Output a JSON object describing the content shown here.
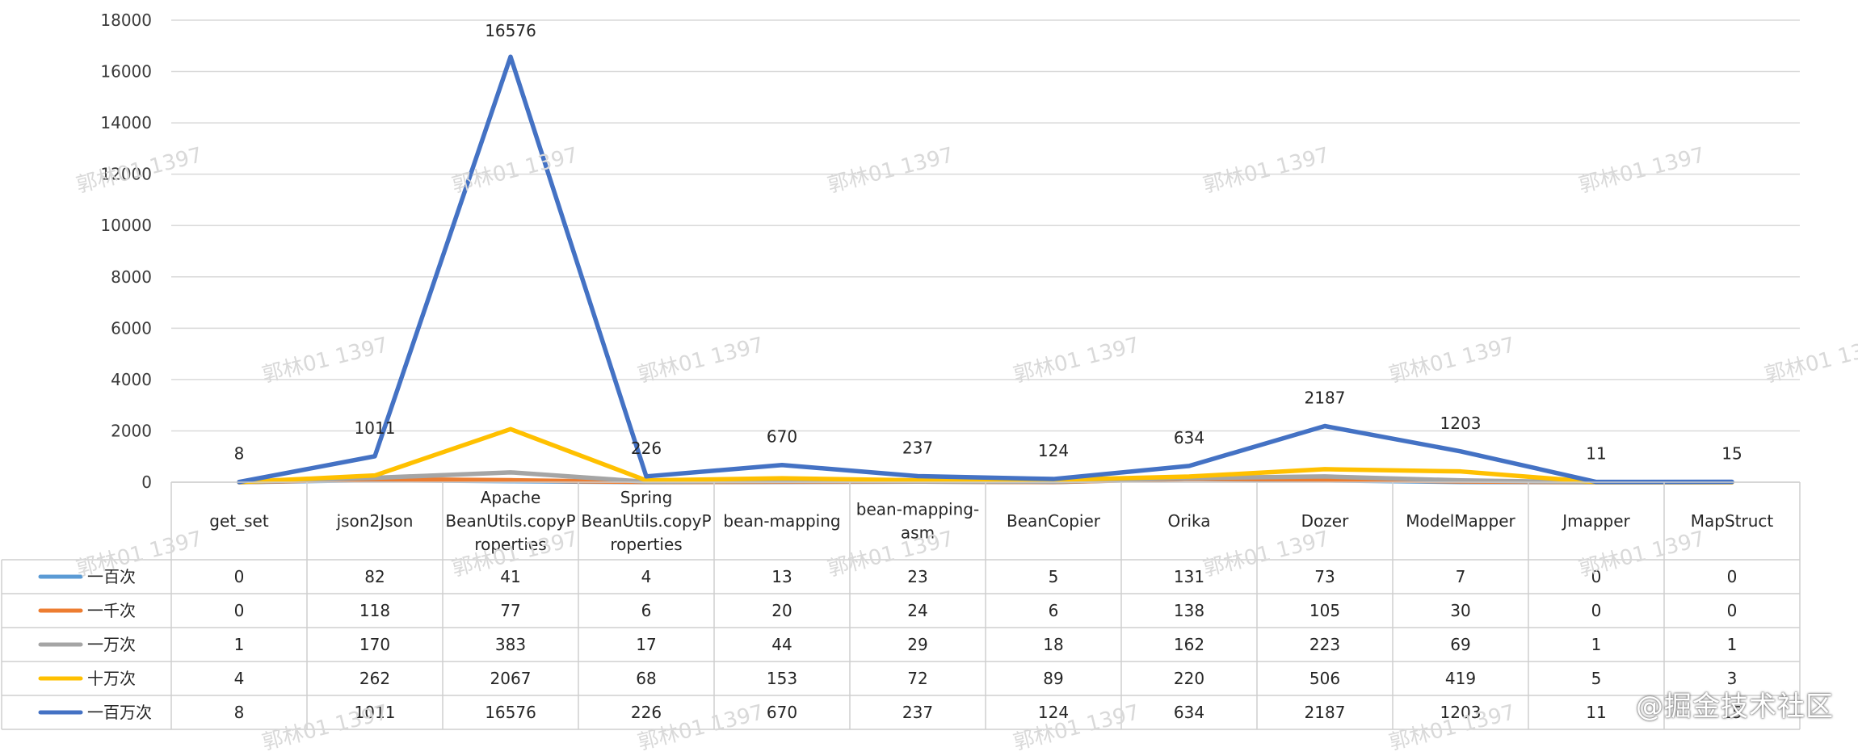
{
  "chart_data": {
    "type": "line",
    "ylim": [
      0,
      18000
    ],
    "yticks": [
      0,
      2000,
      4000,
      6000,
      8000,
      10000,
      12000,
      14000,
      16000,
      18000
    ],
    "grid": true,
    "legend": "data table (left column)",
    "categories": [
      [
        "get_set"
      ],
      [
        "json2Json"
      ],
      [
        "Apache",
        "BeanUtils.copyP",
        "roperties"
      ],
      [
        "Spring",
        "BeanUtils.copyP",
        "roperties"
      ],
      [
        "bean-mapping"
      ],
      [
        "bean-mapping-",
        "asm"
      ],
      [
        "BeanCopier"
      ],
      [
        "Orika"
      ],
      [
        "Dozer"
      ],
      [
        "ModelMapper"
      ],
      [
        "Jmapper"
      ],
      [
        "MapStruct"
      ]
    ],
    "series": [
      {
        "name": "一百次",
        "color": "#5b9bd5",
        "values": [
          0,
          82,
          41,
          4,
          13,
          23,
          5,
          131,
          73,
          7,
          0,
          0
        ]
      },
      {
        "name": "一千次",
        "color": "#ed7d31",
        "values": [
          0,
          118,
          77,
          6,
          20,
          24,
          6,
          138,
          105,
          30,
          0,
          0
        ]
      },
      {
        "name": "一万次",
        "color": "#a5a5a5",
        "values": [
          1,
          170,
          383,
          17,
          44,
          29,
          18,
          162,
          223,
          69,
          1,
          1
        ]
      },
      {
        "name": "十万次",
        "color": "#ffc000",
        "values": [
          4,
          262,
          2067,
          68,
          153,
          72,
          89,
          220,
          506,
          419,
          5,
          3
        ]
      },
      {
        "name": "一百万次",
        "color": "#4472c4",
        "values": [
          8,
          1011,
          16576,
          226,
          670,
          237,
          124,
          634,
          2187,
          1203,
          11,
          15
        ]
      }
    ],
    "labeled_series": "一百万次"
  },
  "watermark": "郭林01 1397",
  "brand": "@掘金技术社区"
}
